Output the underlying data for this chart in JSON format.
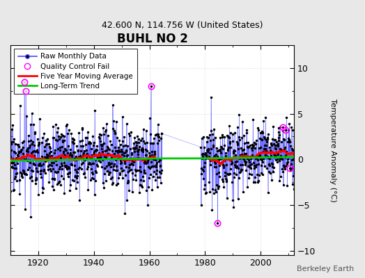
{
  "title": "BUHL NO 2",
  "subtitle": "42.600 N, 114.756 W (United States)",
  "watermark": "Berkeley Earth",
  "year_start": 1910,
  "year_end": 2012,
  "gap_start": 1964.5,
  "gap_end": 1978.5,
  "ylim": [
    -10.5,
    12.5
  ],
  "yticks": [
    -10,
    -5,
    0,
    5,
    10
  ],
  "xticks": [
    1920,
    1940,
    1960,
    1980,
    2000
  ],
  "ylabel": "Temperature Anomaly (°C)",
  "raw_line_color": "#4444ff",
  "dot_color": "#000000",
  "ma_color": "#ff0000",
  "trend_color": "#00cc00",
  "qc_color": "#ff00ff",
  "background_color": "#e8e8e8",
  "plot_bg_color": "#ffffff",
  "seed": 17
}
